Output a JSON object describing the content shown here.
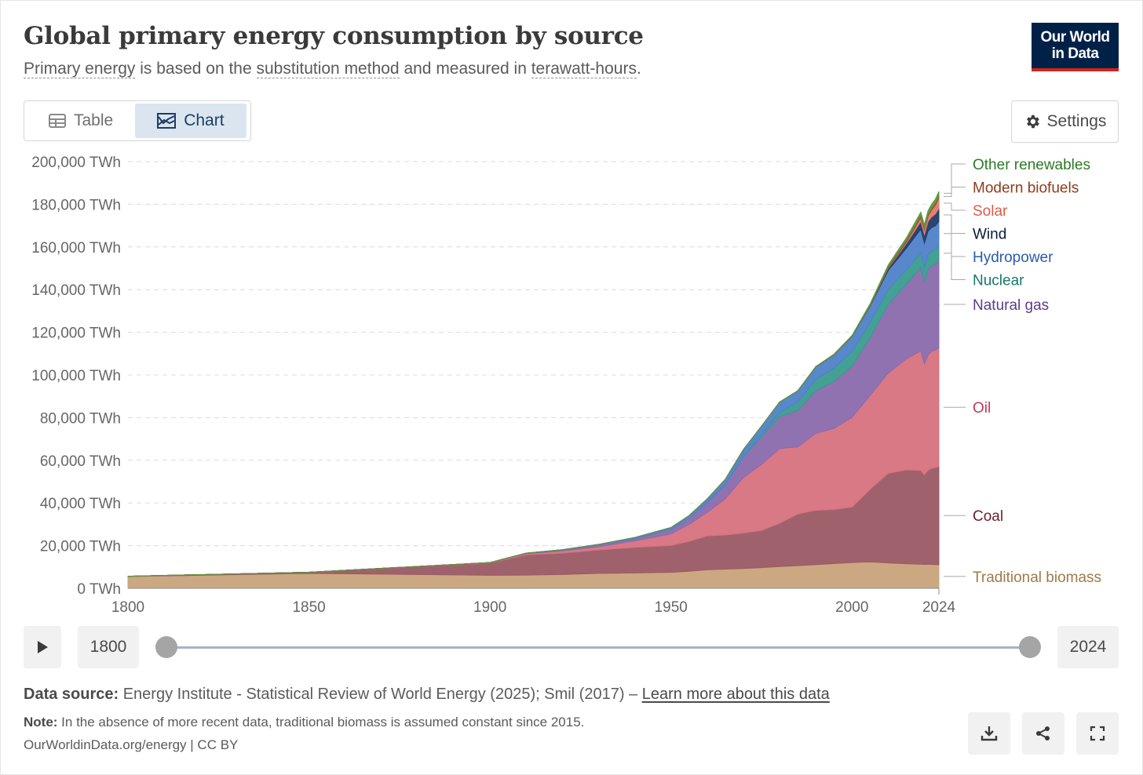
{
  "header": {
    "title": "Global primary energy consumption by source",
    "subtitle_link1": "Primary energy",
    "subtitle_mid1": " is based on the ",
    "subtitle_link2": "substitution method",
    "subtitle_mid2": " and measured in ",
    "subtitle_link3": "terawatt-hours",
    "subtitle_end": ".",
    "logo_line1": "Our World",
    "logo_line2": "in Data"
  },
  "tabs": {
    "table": "Table",
    "chart": "Chart",
    "active": "chart"
  },
  "settings_label": "Settings",
  "timeline": {
    "start": "1800",
    "end": "2024"
  },
  "footer": {
    "source_label": "Data source:",
    "source_text": " Energy Institute - Statistical Review of World Energy (2025); Smil (2017) – ",
    "source_link": "Learn more about this data",
    "note_label": "Note:",
    "note_text": " In the absence of more recent data, traditional biomass is assumed constant since 2015.",
    "credit": "OurWorldinData.org/energy | CC BY"
  },
  "icons": [
    "table-icon",
    "chart-icon",
    "gear-icon",
    "play-icon",
    "download-icon",
    "share-icon",
    "fullscreen-icon"
  ],
  "chart_data": {
    "type": "area",
    "stacked": true,
    "unit": "TWh",
    "x": [
      1800,
      1850,
      1900,
      1910,
      1920,
      1930,
      1940,
      1950,
      1955,
      1960,
      1965,
      1970,
      1975,
      1980,
      1985,
      1990,
      1995,
      2000,
      2005,
      2010,
      2015,
      2019,
      2020,
      2021,
      2022,
      2023,
      2024
    ],
    "series": [
      {
        "name": "Traditional biomass",
        "color": "#c8a37a",
        "label_color": "#a07a47",
        "values": [
          5556,
          7000,
          6111,
          6200,
          6500,
          7000,
          7200,
          7500,
          8000,
          8700,
          9000,
          9300,
          9700,
          10200,
          10600,
          11100,
          11600,
          12100,
          12400,
          11900,
          11500,
          11300,
          11200,
          11300,
          11200,
          11100,
          11100
        ]
      },
      {
        "name": "Coal",
        "color": "#9a5a64",
        "label_color": "#6b1e2b",
        "values": [
          97,
          556,
          5722,
          9500,
          10000,
          11000,
          12000,
          12600,
          14000,
          15900,
          16000,
          16600,
          17400,
          20300,
          24200,
          25500,
          25300,
          26000,
          34000,
          42000,
          44000,
          44000,
          42000,
          44000,
          45000,
          45500,
          46000
        ]
      },
      {
        "name": "Oil",
        "color": "#d7727f",
        "label_color": "#c2375a",
        "values": [
          0,
          0,
          181,
          500,
          1000,
          1500,
          3000,
          5400,
          8000,
          11000,
          17000,
          26000,
          31000,
          35000,
          31500,
          36000,
          38000,
          42000,
          44000,
          47000,
          52000,
          56000,
          52000,
          54000,
          55000,
          55000,
          55500
        ]
      },
      {
        "name": "Natural gas",
        "color": "#8b6aad",
        "label_color": "#5d3a8f",
        "values": [
          0,
          0,
          64,
          200,
          400,
          800,
          1000,
          2100,
          2800,
          4500,
          6500,
          9600,
          12800,
          15000,
          17000,
          20000,
          22000,
          24000,
          27000,
          32000,
          35000,
          39000,
          38500,
          40000,
          40000,
          40500,
          41000
        ]
      },
      {
        "name": "Nuclear",
        "color": "#3a9a8f",
        "label_color": "#18776e",
        "values": [
          0,
          0,
          0,
          0,
          0,
          0,
          0,
          0,
          0,
          10,
          100,
          250,
          1100,
          2000,
          4000,
          5500,
          6200,
          6900,
          7300,
          7200,
          6800,
          7100,
          6800,
          7100,
          6700,
          6800,
          6900
        ]
      },
      {
        "name": "Hydropower",
        "color": "#4f82c8",
        "label_color": "#2a5caa",
        "values": [
          0,
          0,
          0,
          100,
          200,
          300,
          600,
          900,
          1300,
          1800,
          2500,
          3300,
          4000,
          4800,
          5200,
          5700,
          6300,
          7000,
          7600,
          8900,
          10100,
          11000,
          11300,
          11000,
          11200,
          11000,
          11500
        ]
      },
      {
        "name": "Wind",
        "color": "#1f3b66",
        "label_color": "#0b1c3a",
        "values": [
          0,
          0,
          0,
          0,
          0,
          0,
          0,
          0,
          0,
          0,
          0,
          0,
          0,
          0,
          0,
          10,
          20,
          80,
          270,
          880,
          2200,
          3500,
          4000,
          4500,
          5000,
          5500,
          6000
        ]
      },
      {
        "name": "Solar",
        "color": "#e07a6f",
        "label_color": "#dc5c4a",
        "values": [
          0,
          0,
          0,
          0,
          0,
          0,
          0,
          0,
          0,
          0,
          0,
          0,
          0,
          0,
          0,
          0,
          0,
          5,
          20,
          100,
          650,
          1800,
          2100,
          2500,
          3200,
          4000,
          5000
        ]
      },
      {
        "name": "Modern biofuels",
        "color": "#a0522d",
        "label_color": "#8f3b1a",
        "values": [
          0,
          0,
          0,
          0,
          0,
          0,
          0,
          0,
          0,
          0,
          0,
          0,
          0,
          0,
          60,
          100,
          130,
          150,
          300,
          800,
          1000,
          1200,
          1100,
          1150,
          1200,
          1250,
          1300
        ]
      },
      {
        "name": "Other renewables",
        "color": "#5a9a40",
        "label_color": "#2d7a24",
        "values": [
          0,
          0,
          0,
          0,
          0,
          0,
          0,
          0,
          0,
          0,
          10,
          20,
          30,
          60,
          80,
          100,
          200,
          300,
          500,
          800,
          1000,
          1400,
          1400,
          1500,
          1600,
          1650,
          1700
        ]
      }
    ],
    "xlim": [
      1800,
      2024
    ],
    "x_ticks": [
      1800,
      1850,
      1900,
      1950,
      2000,
      2024
    ],
    "ylim": [
      0,
      200000
    ],
    "y_ticks": [
      0,
      20000,
      40000,
      60000,
      80000,
      100000,
      120000,
      140000,
      160000,
      180000,
      200000
    ],
    "y_tick_labels": [
      "0 TWh",
      "20,000 TWh",
      "40,000 TWh",
      "60,000 TWh",
      "80,000 TWh",
      "100,000 TWh",
      "120,000 TWh",
      "140,000 TWh",
      "160,000 TWh",
      "180,000 TWh",
      "200,000 TWh"
    ],
    "grid": true,
    "legend": "right"
  }
}
